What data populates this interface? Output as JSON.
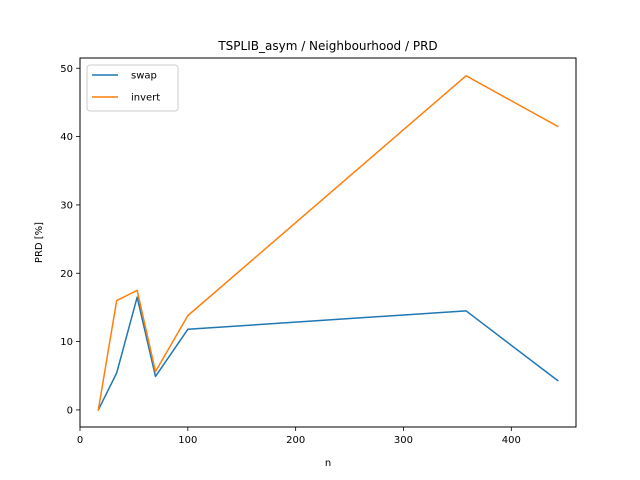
{
  "chart_data": {
    "type": "line",
    "title": "TSPLIB_asym / Neighbourhood / PRD",
    "xlabel": "n",
    "ylabel": "PRD [%]",
    "xlim": [
      0,
      460
    ],
    "ylim": [
      -2.5,
      51.5
    ],
    "xticks": [
      0,
      100,
      200,
      300,
      400
    ],
    "yticks": [
      0,
      10,
      20,
      30,
      40,
      50
    ],
    "grid": false,
    "legend_position": "top-left",
    "x": [
      17,
      34,
      53,
      70,
      100,
      358,
      443
    ],
    "series": [
      {
        "name": "swap",
        "color": "#1f77b4",
        "values": [
          0,
          5.4,
          16.5,
          4.9,
          11.8,
          14.5,
          4.3
        ]
      },
      {
        "name": "invert",
        "color": "#ff7f0e",
        "values": [
          0,
          16.0,
          17.5,
          5.6,
          13.8,
          48.9,
          41.5
        ]
      }
    ]
  }
}
